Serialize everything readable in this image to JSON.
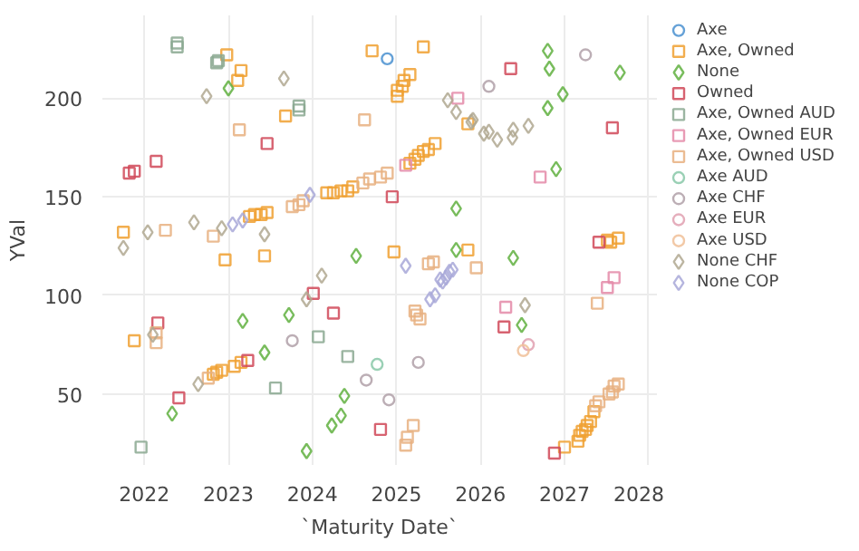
{
  "chart_data": {
    "type": "scatter",
    "xlabel": "`Maturity Date`",
    "ylabel": "YVal",
    "xlim": [
      2021.5,
      2028.1
    ],
    "ylim": [
      14,
      242
    ],
    "xticks": [
      2022,
      2023,
      2024,
      2025,
      2026,
      2027,
      2028
    ],
    "yticks": [
      50,
      100,
      150,
      200
    ],
    "grid": true,
    "legend": "right",
    "series": [
      {
        "name": "Axe",
        "color": "#4a90d0",
        "marker": "circle",
        "x": [
          2024.89
        ],
        "values": [
          220
        ]
      },
      {
        "name": "Axe, Owned",
        "color": "#f0a030",
        "marker": "square",
        "x": [
          2024.71,
          2025.32,
          2022.98,
          2023.15,
          2023.11,
          2025.16,
          2025.09,
          2025.07,
          2025.01,
          2025.01,
          2022.96,
          2023.43,
          2025.85,
          2021.75,
          2023.68,
          2025.85,
          2025.16,
          2025.22,
          2025.26,
          2025.32,
          2025.38,
          2025.46,
          2024.17,
          2024.25,
          2024.34,
          2024.42,
          2024.48,
          2022.82,
          2022.86,
          2022.92,
          2023.07,
          2023.15,
          2021.88,
          2027.0,
          2027.16,
          2027.18,
          2027.21,
          2027.25,
          2027.27,
          2027.31,
          2027.35,
          2027.51,
          2027.55,
          2027.64,
          2024.97,
          2023.25,
          2023.31,
          2023.39,
          2023.46
        ],
        "values": [
          224,
          226,
          222,
          214,
          209,
          212,
          209,
          206,
          204,
          201,
          118,
          120,
          123,
          132,
          191,
          187,
          167,
          169,
          171,
          173,
          174,
          177,
          152,
          152,
          153,
          153,
          155,
          60,
          61,
          62,
          64,
          66,
          77,
          23,
          26,
          29,
          31,
          32,
          34,
          36,
          41,
          128,
          127,
          129,
          122,
          140,
          141,
          141,
          142
        ]
      },
      {
        "name": "None",
        "color": "#60b040",
        "marker": "diamond",
        "x": [
          2023.0,
          2024.52,
          2025.71,
          2026.39,
          2027.66,
          2026.8,
          2026.82,
          2026.98,
          2026.8,
          2026.9,
          2026.49,
          2025.71,
          2023.93,
          2024.34,
          2024.23,
          2024.38,
          2023.17,
          2023.72,
          2023.43,
          2022.33
        ],
        "values": [
          205,
          120,
          123,
          119,
          213,
          224,
          215,
          202,
          195,
          164,
          85,
          144,
          21,
          39,
          34,
          49,
          87,
          90,
          71,
          40
        ]
      },
      {
        "name": "Owned",
        "color": "#d04858",
        "marker": "square",
        "x": [
          2021.82,
          2021.88,
          2022.14,
          2023.46,
          2026.36,
          2027.57,
          2026.28,
          2024.95,
          2023.23,
          2022.41,
          2022.16,
          2024.01,
          2024.25,
          2024.81,
          2026.88,
          2027.41
        ],
        "values": [
          162,
          163,
          168,
          177,
          215,
          185,
          84,
          150,
          67,
          48,
          86,
          101,
          91,
          32,
          20,
          127
        ]
      },
      {
        "name": "Axe, Owned AUD",
        "color": "#8aa890",
        "marker": "square",
        "x": [
          2022.39,
          2022.39,
          2022.86,
          2022.88,
          2023.84,
          2023.84,
          2023.56,
          2021.96,
          2024.07,
          2024.42
        ],
        "values": [
          228,
          226,
          218,
          219,
          196,
          194,
          53,
          23,
          79,
          69
        ]
      },
      {
        "name": "Axe, Owned EUR",
        "color": "#e48aa8",
        "marker": "square",
        "x": [
          2026.71,
          2025.11,
          2025.73,
          2026.3,
          2027.59,
          2027.51
        ],
        "values": [
          160,
          166,
          200,
          94,
          109,
          104
        ]
      },
      {
        "name": "Axe, Owned USD",
        "color": "#e8b080",
        "marker": "square",
        "x": [
          2023.13,
          2024.62,
          2023.76,
          2023.84,
          2023.89,
          2024.6,
          2024.68,
          2024.81,
          2024.89,
          2025.95,
          2025.22,
          2025.24,
          2025.28,
          2022.14,
          2022.14,
          2022.76,
          2025.2,
          2025.13,
          2025.11,
          2027.37,
          2027.41,
          2027.53,
          2027.57,
          2027.59,
          2027.64,
          2027.39,
          2022.25,
          2022.82,
          2025.44,
          2025.38
        ],
        "values": [
          184,
          189,
          145,
          146,
          148,
          157,
          159,
          160,
          162,
          114,
          92,
          90,
          88,
          81,
          76,
          58,
          34,
          28,
          24,
          44,
          46,
          50,
          51,
          54,
          55,
          96,
          133,
          130,
          117,
          116
        ]
      },
      {
        "name": "Axe AUD",
        "color": "#88c8a8",
        "marker": "circle",
        "x": [
          2024.77
        ],
        "values": [
          65
        ]
      },
      {
        "name": "Axe CHF",
        "color": "#b0a0a8",
        "marker": "circle",
        "x": [
          2026.1,
          2027.25,
          2023.76,
          2024.64,
          2025.26,
          2024.91
        ],
        "values": [
          206,
          222,
          77,
          57,
          66,
          47
        ]
      },
      {
        "name": "Axe EUR",
        "color": "#e0a0b0",
        "marker": "circle",
        "x": [
          2026.57
        ],
        "values": [
          75
        ]
      },
      {
        "name": "Axe USD",
        "color": "#f0c098",
        "marker": "circle",
        "x": [
          2026.51
        ],
        "values": [
          72
        ]
      },
      {
        "name": "None CHF",
        "color": "#b0a890",
        "marker": "diamond",
        "x": [
          2025.61,
          2025.71,
          2025.89,
          2025.91,
          2026.04,
          2026.1,
          2026.2,
          2026.38,
          2026.39,
          2026.57,
          2022.74,
          2023.66,
          2021.75,
          2022.04,
          2022.59,
          2022.92,
          2023.43,
          2024.11,
          2023.93,
          2022.64,
          2022.1,
          2026.53
        ],
        "values": [
          199,
          193,
          188,
          189,
          182,
          183,
          179,
          180,
          184,
          186,
          201,
          210,
          124,
          132,
          137,
          134,
          131,
          110,
          98,
          55,
          80,
          95
        ]
      },
      {
        "name": "None COP",
        "color": "#a8a8d8",
        "marker": "diamond",
        "x": [
          2023.97,
          2023.05,
          2023.17,
          2025.52,
          2025.59,
          2025.63,
          2025.67,
          2025.55,
          2025.4,
          2025.46,
          2025.11
        ],
        "values": [
          151,
          136,
          138,
          108,
          109,
          112,
          113,
          107,
          98,
          100,
          115
        ]
      }
    ]
  }
}
